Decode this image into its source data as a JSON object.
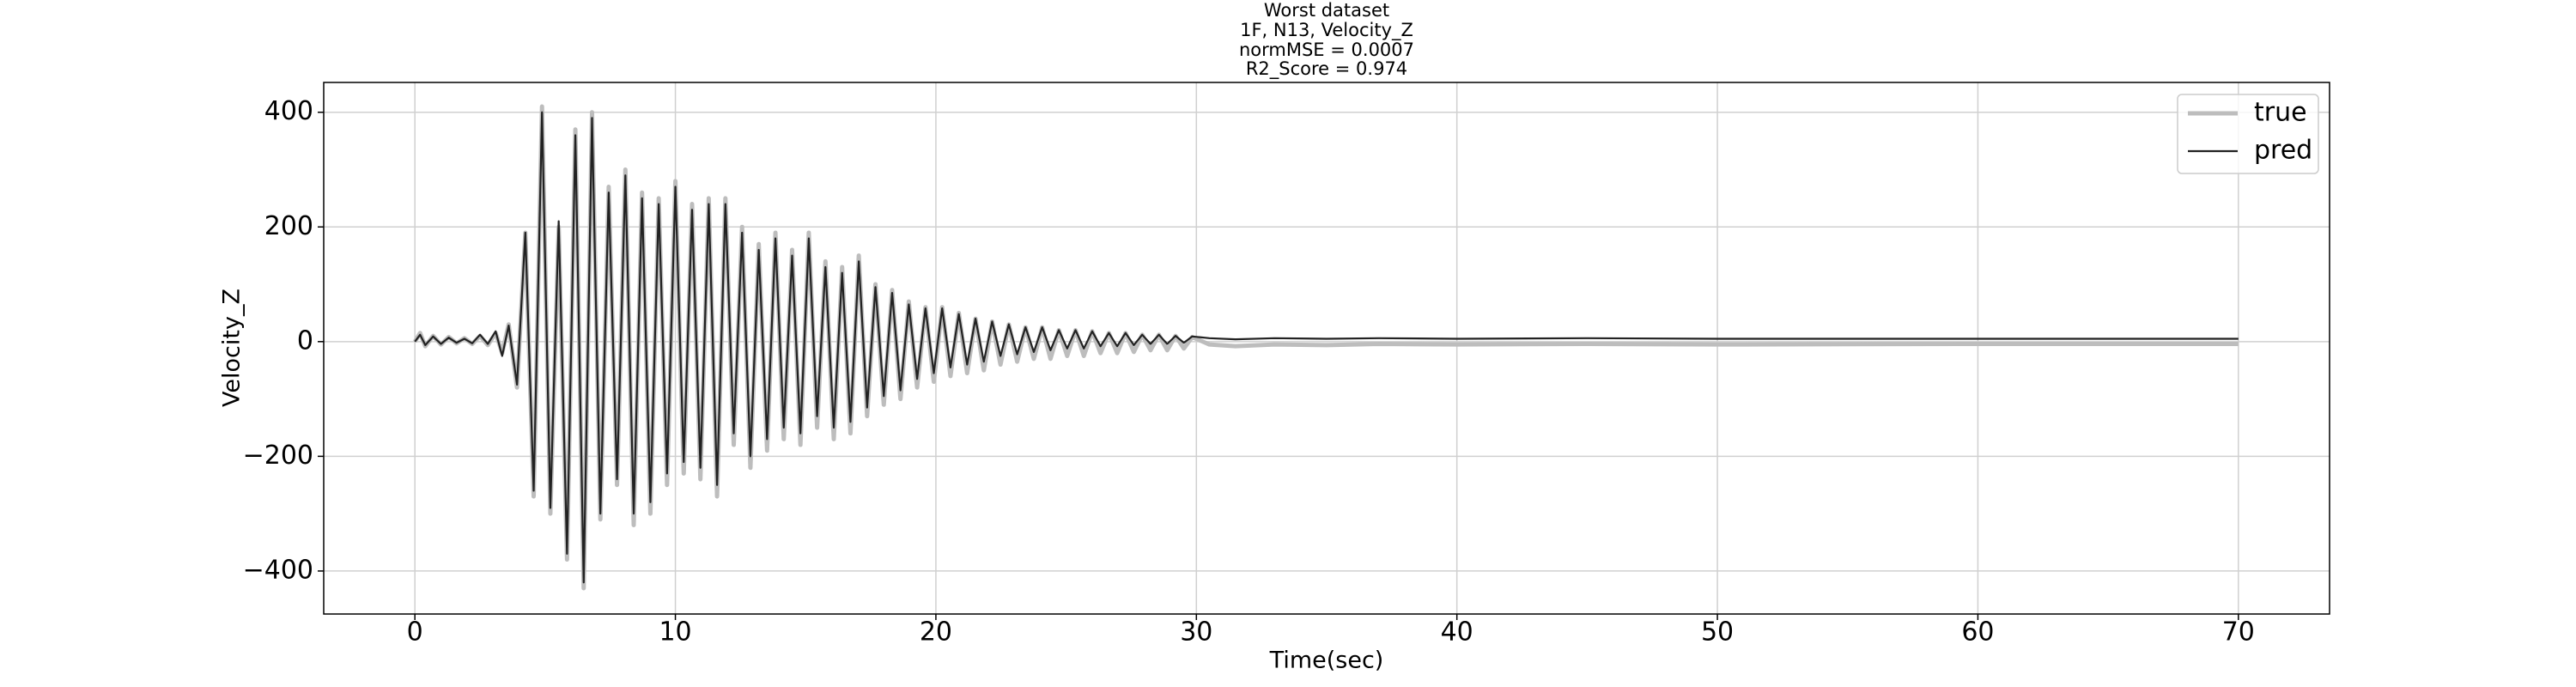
{
  "chart_data": {
    "type": "line",
    "title": [
      "Worst dataset",
      "1F, N13, Velocity_Z",
      "normMSE = 0.0007",
      "R2_Score = 0.974"
    ],
    "xlabel": "Time(sec)",
    "ylabel": "Velocity_Z",
    "x": [
      0,
      0.2,
      0.4,
      0.7,
      1,
      1.3,
      1.6,
      1.9,
      2.2,
      2.5,
      2.8,
      3.1,
      3.35,
      3.6,
      3.92,
      4.24,
      4.56,
      4.88,
      5.2,
      5.52,
      5.84,
      6.16,
      6.48,
      6.8,
      7.12,
      7.44,
      7.76,
      8.08,
      8.4,
      8.72,
      9.04,
      9.36,
      9.68,
      10,
      10.32,
      10.64,
      10.96,
      11.28,
      11.6,
      11.92,
      12.24,
      12.56,
      12.88,
      13.2,
      13.52,
      13.84,
      14.16,
      14.48,
      14.8,
      15.12,
      15.44,
      15.76,
      16.08,
      16.4,
      16.72,
      17.04,
      17.36,
      17.68,
      18,
      18.32,
      18.64,
      18.96,
      19.28,
      19.6,
      19.92,
      20.24,
      20.56,
      20.88,
      21.2,
      21.52,
      21.84,
      22.16,
      22.48,
      22.8,
      23.12,
      23.44,
      23.76,
      24.08,
      24.4,
      24.72,
      25.04,
      25.36,
      25.68,
      26,
      26.32,
      26.64,
      26.96,
      27.28,
      27.6,
      27.92,
      28.24,
      28.56,
      28.88,
      29.2,
      29.52,
      29.84,
      30.5,
      31.5,
      33,
      35,
      37,
      40,
      45,
      50,
      60,
      70
    ],
    "series": [
      {
        "name": "true",
        "color": "#bdbdbd",
        "width": 5,
        "values": [
          0,
          15,
          -8,
          10,
          -5,
          8,
          -3,
          6,
          -4,
          10,
          -6,
          15,
          -20,
          30,
          -80,
          190,
          -270,
          410,
          -300,
          200,
          -380,
          370,
          -430,
          400,
          -310,
          270,
          -250,
          300,
          -320,
          260,
          -300,
          250,
          -250,
          280,
          -230,
          240,
          -240,
          250,
          -270,
          250,
          -180,
          200,
          -220,
          170,
          -190,
          190,
          -170,
          160,
          -180,
          190,
          -150,
          140,
          -170,
          130,
          -160,
          150,
          -130,
          100,
          -110,
          90,
          -100,
          70,
          -80,
          60,
          -70,
          60,
          -60,
          50,
          -55,
          40,
          -50,
          35,
          -40,
          30,
          -35,
          25,
          -30,
          25,
          -30,
          20,
          -25,
          20,
          -25,
          18,
          -20,
          15,
          -20,
          15,
          -18,
          12,
          -15,
          12,
          -15,
          10,
          -12,
          8,
          -5,
          -8,
          -5,
          -6,
          -4,
          -5,
          -4,
          -5,
          -4,
          -4
        ]
      },
      {
        "name": "pred",
        "color": "#222222",
        "width": 2.2,
        "values": [
          0,
          12,
          -6,
          9,
          -4,
          7,
          -2,
          5,
          -3,
          12,
          -4,
          18,
          -25,
          28,
          -75,
          190,
          -260,
          400,
          -290,
          210,
          -370,
          360,
          -420,
          390,
          -300,
          260,
          -240,
          290,
          -300,
          250,
          -280,
          240,
          -230,
          270,
          -210,
          230,
          -220,
          240,
          -250,
          240,
          -160,
          190,
          -200,
          160,
          -170,
          180,
          -150,
          150,
          -160,
          180,
          -130,
          130,
          -150,
          120,
          -140,
          140,
          -115,
          95,
          -95,
          85,
          -85,
          65,
          -65,
          58,
          -55,
          58,
          -45,
          48,
          -40,
          40,
          -35,
          35,
          -25,
          30,
          -22,
          25,
          -18,
          25,
          -15,
          20,
          -12,
          20,
          -12,
          18,
          -8,
          15,
          -8,
          15,
          -6,
          12,
          -4,
          12,
          -4,
          10,
          -2,
          9,
          6,
          4,
          6,
          5,
          6,
          5,
          6,
          5,
          5,
          5
        ]
      }
    ],
    "xlim": [
      -3.5,
      73.5
    ],
    "ylim": [
      -475,
      452
    ],
    "xticks": [
      0,
      10,
      20,
      30,
      40,
      50,
      60,
      70
    ],
    "yticks": [
      {
        "value": -400,
        "label": "−400"
      },
      {
        "value": -200,
        "label": "−200"
      },
      0,
      200,
      400
    ],
    "grid": true,
    "legend": "upper right"
  }
}
